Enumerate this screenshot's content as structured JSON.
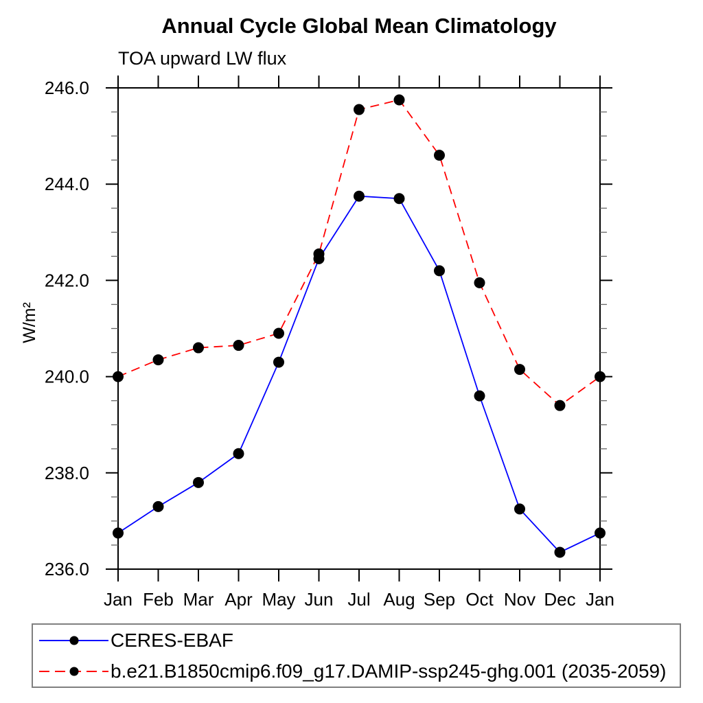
{
  "chart_data": {
    "type": "line",
    "title": "Annual Cycle Global Mean Climatology",
    "subtitle": "TOA upward LW flux",
    "ylabel": "W/m²",
    "xlabel": "",
    "x_tick_labels": [
      "Jan",
      "Feb",
      "Mar",
      "Apr",
      "May",
      "Jun",
      "Jul",
      "Aug",
      "Sep",
      "Oct",
      "Nov",
      "Dec",
      "Jan"
    ],
    "y_ticks": [
      236,
      238,
      240,
      242,
      244,
      246
    ],
    "y_tick_labels": [
      "236.0",
      "238.0",
      "240.0",
      "242.0",
      "244.0",
      "246.0"
    ],
    "ylim": [
      236,
      246
    ],
    "y_minor_step": 0.5,
    "grid": false,
    "legend_position": "bottom box",
    "axis_color": "#000000",
    "minor_tick_color": "#666666",
    "marker_color": "#000000",
    "series": [
      {
        "name": "CERES-EBAF",
        "color": "#0000ff",
        "line_style": "solid",
        "marker": "filled-circle",
        "values": [
          236.75,
          237.3,
          237.8,
          238.4,
          240.3,
          242.45,
          243.75,
          243.7,
          242.2,
          239.6,
          237.25,
          236.35,
          236.75
        ]
      },
      {
        "name": "b.e21.B1850cmip6.f09_g17.DAMIP-ssp245-ghg.001 (2035-2059)",
        "color": "#ff0000",
        "line_style": "dashed",
        "marker": "filled-circle",
        "values": [
          240.0,
          240.35,
          240.6,
          240.65,
          240.9,
          242.55,
          245.55,
          245.75,
          244.6,
          241.95,
          240.15,
          239.4,
          240.0
        ]
      }
    ]
  }
}
